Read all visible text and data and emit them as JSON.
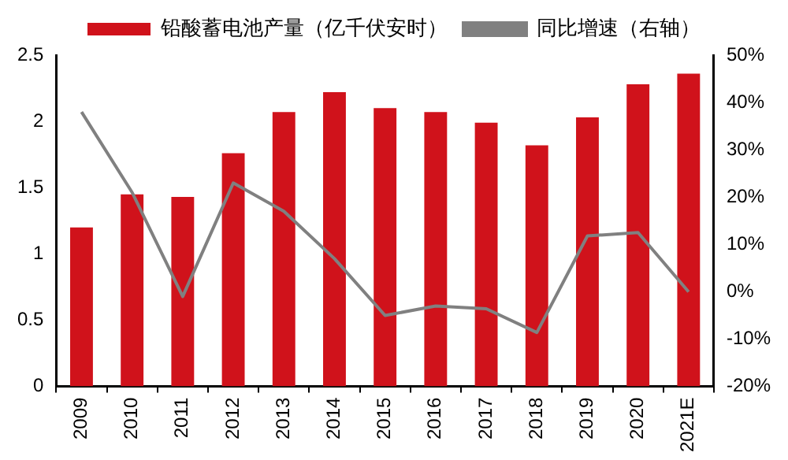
{
  "chart_data": {
    "type": "bar",
    "categories": [
      "2009",
      "2010",
      "2011",
      "2012",
      "2013",
      "2014",
      "2015",
      "2016",
      "2017",
      "2018",
      "2019",
      "2020",
      "2021E"
    ],
    "series": [
      {
        "name": "铅酸蓄电池产量（亿千伏安时）",
        "color": "#d0121b",
        "values": [
          1.2,
          1.45,
          1.43,
          1.76,
          2.07,
          2.22,
          2.1,
          2.07,
          1.99,
          1.82,
          2.03,
          2.28,
          2.36
        ]
      },
      {
        "name": "同比增速（右轴）",
        "type": "line",
        "axis": "y2",
        "color": "#808080",
        "values": [
          38,
          21,
          -1,
          23,
          17,
          7,
          -5,
          -3,
          -3.6,
          -8.6,
          11.8,
          12.5,
          0
        ]
      }
    ],
    "ylim": [
      0,
      2.5
    ],
    "yticks": [
      0,
      0.5,
      1,
      1.5,
      2,
      2.5
    ],
    "y2lim": [
      -20,
      50
    ],
    "y2ticks": [
      {
        "value": -20,
        "label": "-20%"
      },
      {
        "value": -10,
        "label": "-10%"
      },
      {
        "value": 0,
        "label": "0%"
      },
      {
        "value": 10,
        "label": "10%"
      },
      {
        "value": 20,
        "label": "20%"
      },
      {
        "value": 30,
        "label": "30%"
      },
      {
        "value": 40,
        "label": "40%"
      },
      {
        "value": 50,
        "label": "50%"
      }
    ],
    "grid": false,
    "legend": "top",
    "marker": "none"
  }
}
